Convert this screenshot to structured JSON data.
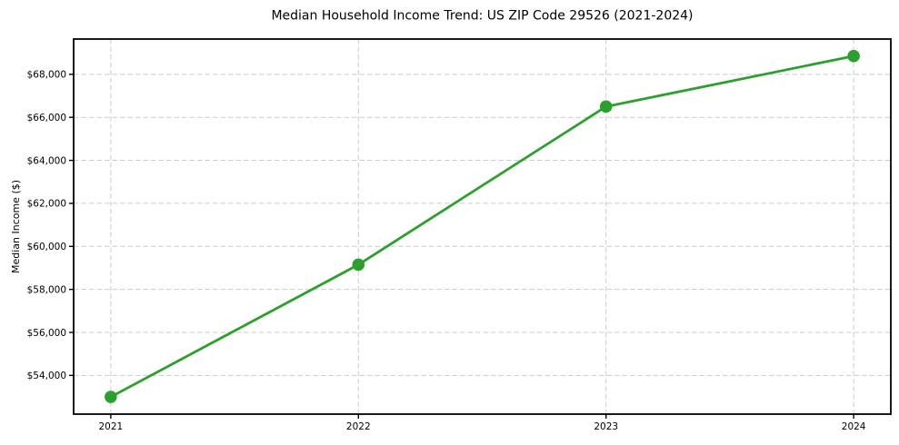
{
  "chart_data": {
    "type": "line",
    "title": "Median Household Income Trend: US ZIP Code 29526 (2021-2024)",
    "xlabel": "",
    "ylabel": "Median Income ($)",
    "x": [
      2021,
      2022,
      2023,
      2024
    ],
    "values": [
      53000,
      59150,
      66500,
      68850
    ],
    "xtick_labels": [
      "2021",
      "2022",
      "2023",
      "2024"
    ],
    "yticks": [
      54000,
      56000,
      58000,
      60000,
      62000,
      64000,
      66000,
      68000
    ],
    "ytick_labels": [
      "$54,000",
      "$56,000",
      "$58,000",
      "$60,000",
      "$62,000",
      "$64,000",
      "$66,000",
      "$68,000"
    ],
    "xlim": [
      2020.85,
      2024.15
    ],
    "ylim": [
      52200,
      69640
    ],
    "grid": "dashed",
    "legend": "none",
    "marker": "circle",
    "line_color": "#2ca02c",
    "marker_color": "#2ca02c",
    "grid_color": "#cccccc",
    "axis_color": "#000000",
    "text_color": "#000000",
    "background": "#ffffff"
  }
}
